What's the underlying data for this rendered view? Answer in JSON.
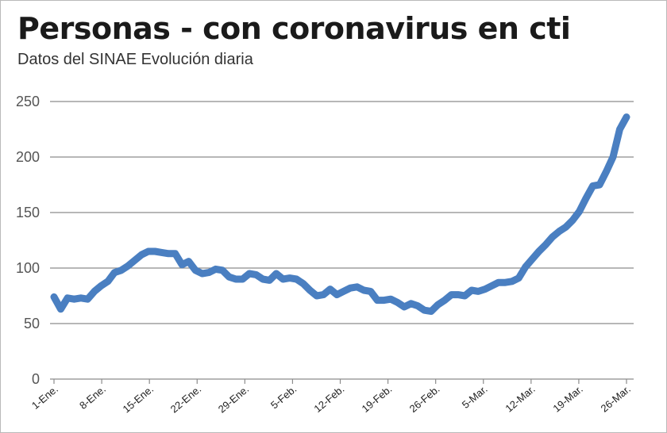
{
  "chart_data": {
    "type": "line",
    "title": "Personas - con coronavirus en cti",
    "subtitle": "Datos del SINAE  Evolución diaria",
    "xlabel": "",
    "ylabel": "",
    "ylim": [
      0,
      250
    ],
    "yticks": [
      0,
      50,
      100,
      150,
      200,
      250
    ],
    "grid": true,
    "x_tick_labels": [
      "1-Ene.",
      "8-Ene.",
      "15-Ene.",
      "22-Ene.",
      "29-Ene.",
      "5-Feb.",
      "12-Feb.",
      "19-Feb.",
      "26-Feb.",
      "5-Mar.",
      "12-Mar.",
      "19-Mar.",
      "26-Mar."
    ],
    "line_color": "#4a7fc1",
    "series": [
      {
        "values": [
          74,
          63,
          73,
          72,
          73,
          72,
          79,
          84,
          88,
          96,
          98,
          102,
          107,
          112,
          115,
          115,
          114,
          113,
          113,
          103,
          106,
          98,
          95,
          96,
          99,
          98,
          92,
          90,
          90,
          95,
          94,
          90,
          89,
          95,
          90,
          91,
          90,
          86,
          80,
          75,
          76,
          81,
          76,
          79,
          82,
          83,
          80,
          79,
          71,
          71,
          72,
          69,
          65,
          68,
          66,
          62,
          61,
          67,
          71,
          76,
          76,
          75,
          80,
          79,
          81,
          84,
          87,
          87,
          88,
          91,
          101,
          108,
          115,
          121,
          128,
          133,
          137,
          143,
          151,
          163,
          174,
          175,
          187,
          200,
          225,
          236
        ]
      }
    ]
  }
}
